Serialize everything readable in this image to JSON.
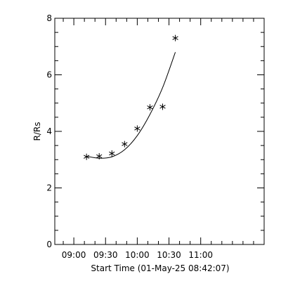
{
  "chart_data": {
    "type": "scatter",
    "title": "",
    "xlabel": "Start Time (01-May-25 08:42:07)",
    "ylabel": "R/Rs",
    "xlim": [
      "08:42",
      "12:00"
    ],
    "ylim": [
      0,
      8
    ],
    "x_ticks": [
      "09:00",
      "09:30",
      "10:00",
      "10:30",
      "11:00"
    ],
    "x_minor_tick_minutes": 10,
    "y_ticks": [
      0,
      2,
      4,
      6,
      8
    ],
    "y_minor_step": 0.5,
    "grid": false,
    "series": [
      {
        "marker": "asterisk",
        "points": [
          {
            "x": "09:12",
            "y": 3.1
          },
          {
            "x": "09:24",
            "y": 3.12
          },
          {
            "x": "09:36",
            "y": 3.22
          },
          {
            "x": "09:48",
            "y": 3.55
          },
          {
            "x": "10:00",
            "y": 4.1
          },
          {
            "x": "10:12",
            "y": 4.85
          },
          {
            "x": "10:24",
            "y": 4.87
          },
          {
            "x": "10:36",
            "y": 7.3
          }
        ]
      },
      {
        "line": "fit",
        "points": [
          {
            "x": "09:12",
            "y": 3.12
          },
          {
            "x": "09:24",
            "y": 3.05
          },
          {
            "x": "09:36",
            "y": 3.1
          },
          {
            "x": "09:48",
            "y": 3.35
          },
          {
            "x": "10:00",
            "y": 3.85
          },
          {
            "x": "10:12",
            "y": 4.6
          },
          {
            "x": "10:24",
            "y": 5.55
          },
          {
            "x": "10:36",
            "y": 6.8
          }
        ]
      }
    ]
  }
}
